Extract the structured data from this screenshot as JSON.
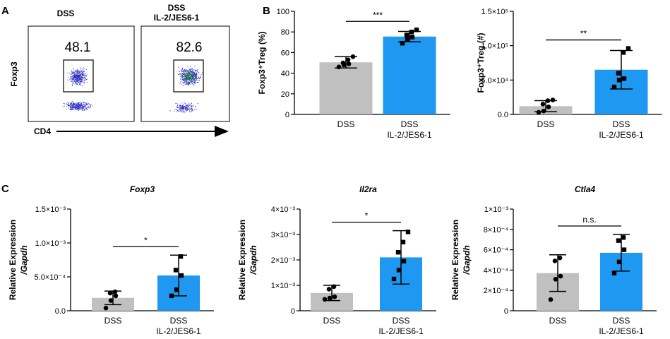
{
  "colors": {
    "dss": "#c0c0c0",
    "treated": "#1e98f0",
    "axis": "#000000",
    "dots_flow": "#2b2bbf",
    "dots_flow_hot": "#2a8f3e"
  },
  "panel_a": {
    "label": "A",
    "gates": [
      {
        "title": "DSS",
        "subtitle": "",
        "percent": "48.1"
      },
      {
        "title": "DSS",
        "subtitle": "IL-2/JES6-1",
        "percent": "82.6"
      }
    ],
    "y_axis_label": "Foxp3",
    "x_axis_label": "CD4"
  },
  "panel_b": {
    "label": "B"
  },
  "panel_c": {
    "label": "C"
  },
  "chart_data": [
    {
      "id": "b1",
      "type": "bar",
      "title": "",
      "ylabel": "Foxp3⁺Treg (%)",
      "categories": [
        "DSS",
        "DSS\nIL-2/JES6-1"
      ],
      "values": [
        50.5,
        75.5
      ],
      "errors": [
        5.5,
        5.0
      ],
      "points": [
        [
          46,
          48,
          49,
          50,
          53,
          56
        ],
        [
          69,
          73,
          75,
          77,
          80,
          82
        ]
      ],
      "ylim": [
        0,
        100
      ],
      "ticks": [
        0,
        20,
        40,
        60,
        80,
        100
      ],
      "tick_labels": [
        "0",
        "20",
        "40",
        "60",
        "80",
        "100"
      ],
      "significance": "***"
    },
    {
      "id": "b2",
      "type": "bar",
      "title": "",
      "ylabel": "Foxp3⁺Treg (#)",
      "categories": [
        "DSS",
        "DSS\nIL-2/JES6-1"
      ],
      "values": [
        12000,
        65000
      ],
      "errors": [
        8000,
        28000
      ],
      "points": [
        [
          3000,
          5000,
          11000,
          15000,
          20000,
          21000
        ],
        [
          40000,
          50000,
          52000,
          60000,
          90000,
          96000
        ]
      ],
      "ylim": [
        0,
        150000
      ],
      "ticks": [
        0,
        50000,
        100000,
        150000
      ],
      "tick_labels": [
        "0.0",
        "5.0×10⁴",
        "1.0×10⁵",
        "1.5×10⁵"
      ],
      "significance": "**"
    },
    {
      "id": "c1",
      "type": "bar",
      "title": "Foxp3",
      "ylabel": "Relative Expression\n/Gapdh",
      "categories": [
        "DSS",
        "DSS\nIL-2/JES6-1"
      ],
      "values": [
        0.00019,
        0.00052
      ],
      "errors": [
        0.0001,
        0.0003
      ],
      "points": [
        [
          4e-05,
          0.00015,
          0.00022,
          0.00026,
          0.00028
        ],
        [
          0.00022,
          0.00031,
          0.00052,
          0.0006,
          0.0008
        ]
      ],
      "ylim": [
        0,
        0.0015
      ],
      "ticks": [
        0,
        0.0005,
        0.001,
        0.0015
      ],
      "tick_labels": [
        "0.0",
        "5.0×10⁻⁴",
        "1.0×10⁻³",
        "1.5×10⁻³"
      ],
      "significance": "*"
    },
    {
      "id": "c2",
      "type": "bar",
      "title": "Il2ra",
      "ylabel": "Relative Expression\n/Gapdh",
      "categories": [
        "DSS",
        "DSS\nIL-2/JES6-1"
      ],
      "values": [
        0.0007,
        0.0021
      ],
      "errors": [
        0.0003,
        0.00105
      ],
      "points": [
        [
          0.00045,
          0.0005,
          0.00055,
          0.00085,
          0.00095
        ],
        [
          0.00125,
          0.0016,
          0.00195,
          0.0023,
          0.0027,
          0.0031
        ]
      ],
      "ylim": [
        0,
        0.004
      ],
      "ticks": [
        0,
        0.001,
        0.002,
        0.003,
        0.004
      ],
      "tick_labels": [
        "0",
        "1×10⁻³",
        "2×10⁻³",
        "3×10⁻³",
        "4×10⁻³"
      ],
      "significance": "*"
    },
    {
      "id": "c3",
      "type": "bar",
      "title": "Ctla4",
      "ylabel": "Relative Expression\n/Gapdh",
      "categories": [
        "DSS",
        "DSS\nIL-2/JES6-1"
      ],
      "values": [
        0.00037,
        0.00057
      ],
      "errors": [
        0.00018,
        0.00018
      ],
      "points": [
        [
          0.00011,
          0.00031,
          0.00034,
          0.00049,
          0.00052
        ],
        [
          0.00037,
          0.00048,
          0.0006,
          0.00069,
          0.00072
        ]
      ],
      "ylim": [
        0,
        0.001
      ],
      "ticks": [
        0,
        0.0002,
        0.0004,
        0.0006,
        0.0008,
        0.001
      ],
      "tick_labels": [
        "0",
        "2×10⁻⁴",
        "4×10⁻⁴",
        "6×10⁻⁴",
        "8×10⁻⁴",
        "1×10⁻³"
      ],
      "significance": "n.s."
    }
  ]
}
